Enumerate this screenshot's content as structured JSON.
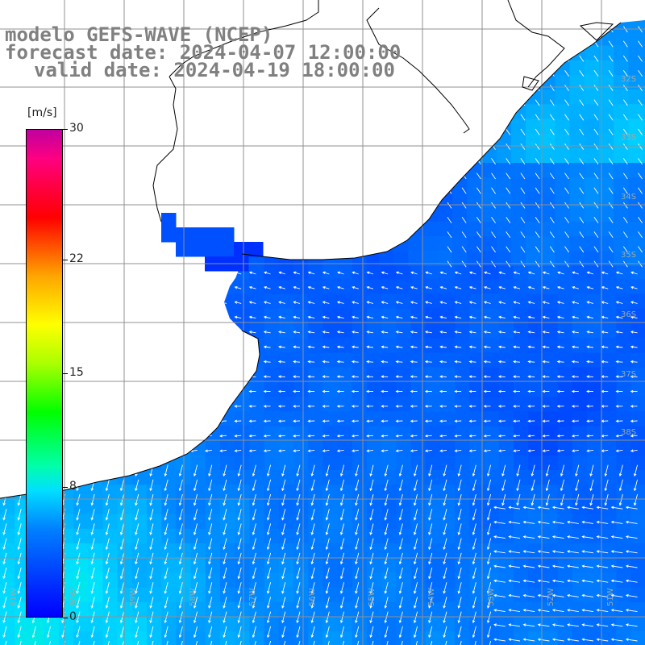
{
  "title": {
    "line1": "modelo GEFS-WAVE (NCEP)",
    "line2": "forecast date: 2024-04-07 12:00:00",
    "line3": "valid date: 2024-04-19 18:00:00"
  },
  "colorbar": {
    "unit": "[m/s]",
    "ticks": [
      {
        "value": 30,
        "label": "30"
      },
      {
        "value": 22,
        "label": "22"
      },
      {
        "value": 15,
        "label": "15"
      },
      {
        "value": 8,
        "label": "8"
      },
      {
        "value": 0,
        "label": "0"
      }
    ],
    "min": 0,
    "max": 30
  },
  "grid": {
    "latitude_labels": [
      "32S",
      "33S",
      "34S",
      "35S",
      "36S",
      "37S",
      "38S"
    ],
    "longitude_labels": [
      "61W",
      "60W",
      "59W",
      "58W",
      "57W",
      "56W",
      "55W",
      "54W",
      "53W",
      "52W",
      "51W"
    ]
  },
  "colors": {
    "land": "#ffffff",
    "coast": "#000000",
    "grid": "#909090",
    "arrow": "#ffffff"
  }
}
